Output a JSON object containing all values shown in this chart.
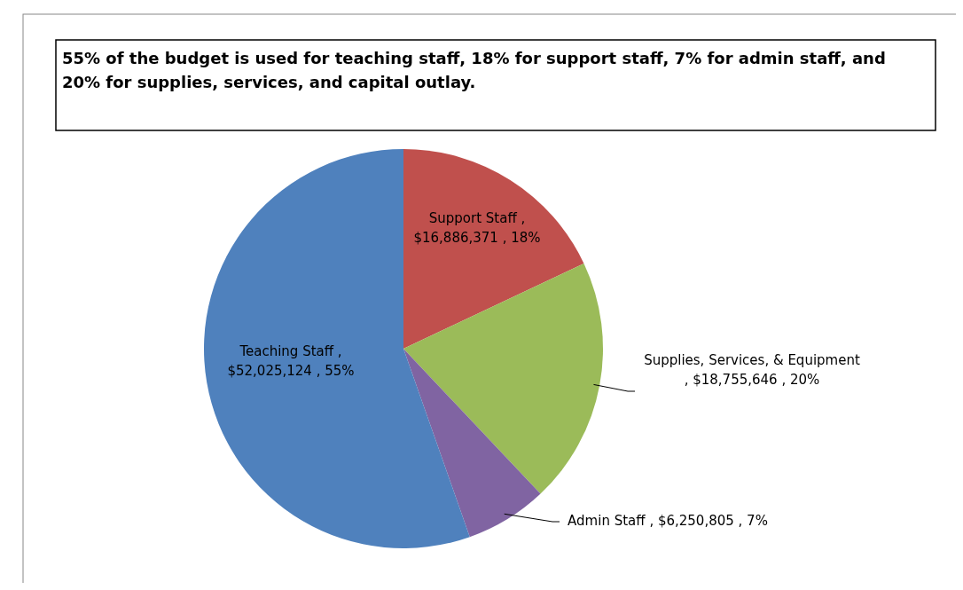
{
  "chart_data": {
    "type": "pie",
    "title": "55% of the budget is used for teaching staff, 18% for support staff, 7% for admin staff, and 20% for supplies, services, and capital outlay.",
    "categories": [
      "Support Staff",
      "Supplies, Services, & Equipment",
      "Admin Staff",
      "Teaching Staff"
    ],
    "values": [
      16886371,
      18755646,
      6250805,
      52025124
    ],
    "value_labels": [
      ", $16,886,371 , 18%",
      ", $18,755,646 , 20%",
      ", $6,250,805 , 7%",
      ", $52,025,124 , 55%"
    ],
    "colors": [
      "#c0504d",
      "#9bbb59",
      "#8064a2",
      "#4f81bd"
    ]
  }
}
